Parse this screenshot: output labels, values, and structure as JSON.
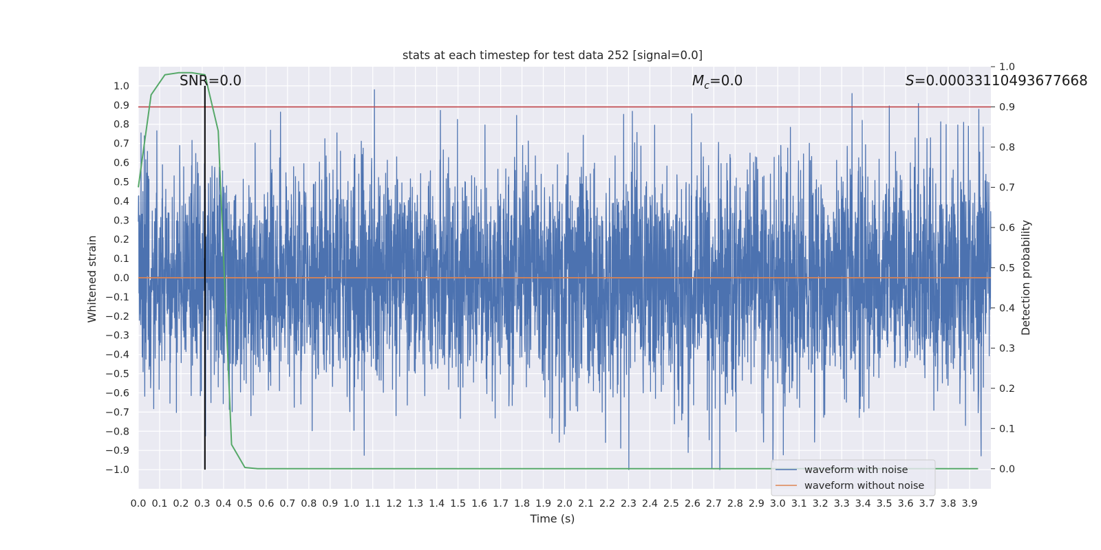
{
  "chart_data": {
    "type": "line",
    "title": "stats at each timestep for test data 252 [signal=0.0]",
    "xlabel": "Time (s)",
    "ylabel": "Whitened strain",
    "ylabel_right": "Detection probability",
    "xlim": [
      0.0,
      4.0
    ],
    "ylim": [
      -1.1,
      1.1
    ],
    "ylim_right": [
      -0.05,
      1.0
    ],
    "x_ticks": [
      "0.0",
      "0.1",
      "0.2",
      "0.3",
      "0.4",
      "0.5",
      "0.6",
      "0.7",
      "0.8",
      "0.9",
      "1.0",
      "1.1",
      "1.2",
      "1.3",
      "1.4",
      "1.5",
      "1.6",
      "1.7",
      "1.8",
      "1.9",
      "2.0",
      "2.1",
      "2.2",
      "2.3",
      "2.4",
      "2.5",
      "2.6",
      "2.7",
      "2.8",
      "2.9",
      "3.0",
      "3.1",
      "3.2",
      "3.3",
      "3.4",
      "3.5",
      "3.6",
      "3.7",
      "3.8",
      "3.9"
    ],
    "y_ticks": [
      "1.0",
      "0.9",
      "0.8",
      "0.7",
      "0.6",
      "0.5",
      "0.4",
      "0.3",
      "0.2",
      "0.1",
      "0.0",
      "−0.1",
      "−0.2",
      "−0.3",
      "−0.4",
      "−0.5",
      "−0.6",
      "−0.7",
      "−0.8",
      "−0.9",
      "−1.0"
    ],
    "y_ticks_right": [
      "1.0",
      "0.9",
      "0.8",
      "0.7",
      "0.6",
      "0.5",
      "0.4",
      "0.3",
      "0.2",
      "0.1",
      "0.0"
    ],
    "annotations": {
      "snr": "SNR=0.0",
      "mc_symbol": "M",
      "mc_sub": "c",
      "mc_value": "=0.0",
      "s_symbol": "S",
      "s_value": "=0.00033110493677668"
    },
    "series": [
      {
        "name": "waveform with noise",
        "color": "#4c72b0",
        "axis": "left",
        "style": "dense-noise",
        "amplitude_range": [
          -1.0,
          0.98
        ]
      },
      {
        "name": "waveform without noise",
        "color": "#dd8452",
        "axis": "left",
        "x": [
          0.0,
          4.0
        ],
        "y": [
          0.0,
          0.0
        ]
      },
      {
        "name": "",
        "color": "#55a868",
        "axis": "right",
        "x": [
          0.0,
          0.06,
          0.125,
          0.19,
          0.25,
          0.3125,
          0.375,
          0.4375,
          0.5,
          0.56,
          0.625,
          0.75,
          1.0,
          1.5,
          2.0,
          2.5,
          3.0,
          3.5,
          3.94
        ],
        "y": [
          0.7,
          0.93,
          0.98,
          0.985,
          0.985,
          0.98,
          0.84,
          0.06,
          0.003,
          0.0,
          0.0,
          0.0,
          0.0,
          0.0,
          0.0,
          0.0,
          0.0,
          0.0,
          0.0
        ]
      }
    ],
    "hlines": [
      {
        "y_right": 0.9,
        "color": "#c44e52"
      }
    ],
    "vlines": [
      {
        "x": 0.3125,
        "y_from": -1.0,
        "y_to": 1.0,
        "color": "#000000"
      }
    ],
    "grid": true,
    "legend": {
      "position": "lower-right",
      "entries": [
        "waveform with noise",
        "waveform without noise"
      ]
    },
    "colors": {
      "background": "#eaeaf2",
      "grid": "#ffffff",
      "noise": "#4c72b0",
      "clean": "#dd8452",
      "prob": "#55a868",
      "threshold": "#c44e52"
    }
  }
}
